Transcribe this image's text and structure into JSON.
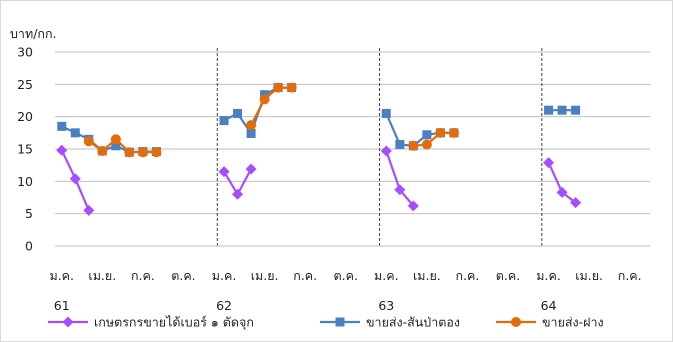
{
  "chart_data": {
    "type": "line",
    "ylabel": "บาท/กก.",
    "ylim": [
      0,
      30
    ],
    "yticks": [
      0,
      5,
      10,
      15,
      20,
      25,
      30
    ],
    "grid": true,
    "legend_placement": "bottom",
    "month_labels": [
      "ม.ค.",
      "เม.ย.",
      "ก.ค.",
      "ต.ค."
    ],
    "years": [
      "61",
      "62",
      "63",
      "64"
    ],
    "year_separators_after_month_index": [
      11.5,
      23.5,
      35.5
    ],
    "series": [
      {
        "name": "เกษตรกรขายได้เบอร์ ๑ ตัดจุก",
        "color": "#a64dff",
        "marker": "diamond",
        "points": [
          [
            0,
            14.8
          ],
          [
            1,
            10.4
          ],
          [
            2,
            5.5
          ],
          [
            12,
            11.5
          ],
          [
            13,
            8.0
          ],
          [
            14,
            11.9
          ],
          [
            24,
            14.7
          ],
          [
            25,
            8.7
          ],
          [
            26,
            6.2
          ],
          [
            36,
            12.9
          ],
          [
            37,
            8.3
          ],
          [
            38,
            6.7
          ]
        ]
      },
      {
        "name": "ขายส่ง-สันป่าตอง",
        "color": "#4a7fc1",
        "marker": "square",
        "points": [
          [
            0,
            18.5
          ],
          [
            1,
            17.5
          ],
          [
            2,
            16.5
          ],
          [
            3,
            14.7
          ],
          [
            4,
            15.5
          ],
          [
            5,
            14.5
          ],
          [
            6,
            14.6
          ],
          [
            7,
            14.6
          ],
          [
            12,
            19.4
          ],
          [
            13,
            20.5
          ],
          [
            14,
            17.4
          ],
          [
            15,
            23.4
          ],
          [
            16,
            24.5
          ],
          [
            17,
            24.5
          ],
          [
            24,
            20.5
          ],
          [
            25,
            15.7
          ],
          [
            26,
            15.5
          ],
          [
            27,
            17.2
          ],
          [
            28,
            17.5
          ],
          [
            29,
            17.5
          ],
          [
            36,
            21.0
          ],
          [
            37,
            21.0
          ],
          [
            38,
            21.0
          ]
        ]
      },
      {
        "name": "ขายส่ง-ฝาง",
        "color": "#e36c0a",
        "marker": "circle",
        "points": [
          [
            2,
            16.2
          ],
          [
            3,
            14.7
          ],
          [
            4,
            16.5
          ],
          [
            5,
            14.5
          ],
          [
            6,
            14.5
          ],
          [
            7,
            14.5
          ],
          [
            14,
            18.7
          ],
          [
            15,
            22.7
          ],
          [
            16,
            24.5
          ],
          [
            17,
            24.5
          ],
          [
            26,
            15.5
          ],
          [
            27,
            15.7
          ],
          [
            28,
            17.5
          ],
          [
            29,
            17.5
          ]
        ]
      }
    ]
  }
}
